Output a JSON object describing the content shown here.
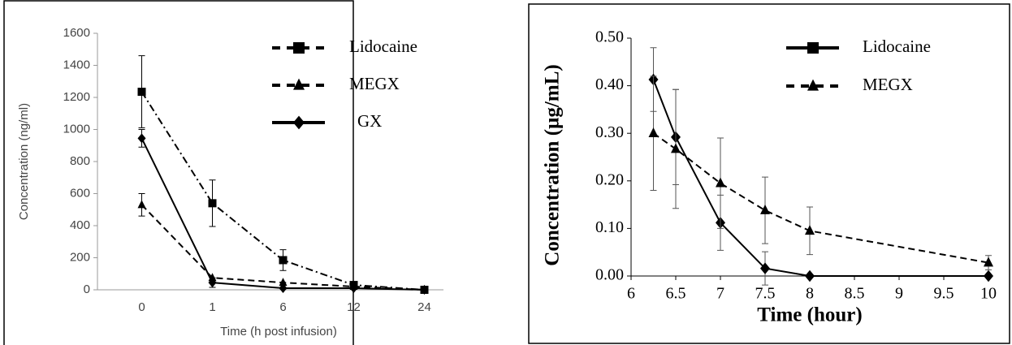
{
  "chart_data": [
    {
      "type": "line",
      "xlabel": "Time (h post infusion)",
      "ylabel": "Concentration (ng/ml)",
      "categories": [
        "0",
        "1",
        "6",
        "12",
        "24"
      ],
      "ylim": [
        0,
        1600
      ],
      "yticks": [
        0,
        200,
        400,
        600,
        800,
        1000,
        1200,
        1400,
        1600
      ],
      "series": [
        {
          "name": "Lidocaine",
          "color": "#000000",
          "line_style": "dashdot",
          "marker": "square",
          "legend_marker": "square",
          "values": [
            1235,
            540,
            185,
            30,
            0
          ],
          "errors": [
            225,
            145,
            65,
            null,
            null
          ]
        },
        {
          "name": "MEGX",
          "color": "#000000",
          "line_style": "dashed",
          "marker": "triangle",
          "legend_marker": "triangle",
          "values": [
            530,
            75,
            45,
            20,
            0
          ],
          "errors": [
            70,
            null,
            null,
            null,
            null
          ]
        },
        {
          "name": "GX",
          "color": "#000000",
          "line_style": "solid",
          "marker": "diamond",
          "legend_marker": "diamond",
          "values": [
            945,
            45,
            10,
            10,
            0
          ],
          "errors": [
            55,
            30,
            null,
            null,
            null
          ]
        }
      ]
    },
    {
      "type": "scatter-line",
      "xlabel": "Time (hour)",
      "ylabel": "Concentration (µg/mL)",
      "xlim": [
        6,
        10
      ],
      "xticks": [
        6,
        6.5,
        7,
        7.5,
        8,
        8.5,
        9,
        9.5,
        10
      ],
      "ylim": [
        0,
        0.5
      ],
      "yticks": [
        {
          "value": 0,
          "label": "0.00"
        },
        {
          "value": 0.1,
          "label": "0.10"
        },
        {
          "value": 0.2,
          "label": "0.20"
        },
        {
          "value": 0.3,
          "label": "0.30"
        },
        {
          "value": 0.4,
          "label": "0.40"
        },
        {
          "value": 0.5,
          "label": "0.50"
        }
      ],
      "series": [
        {
          "name": "Lidocaine",
          "color": "#000000",
          "line_style": "solid",
          "marker": "diamond",
          "legend_marker": "square",
          "x": [
            6.25,
            6.5,
            7,
            7.5,
            8,
            10
          ],
          "values": [
            0.413,
            0.292,
            0.112,
            0.016,
            0,
            0
          ],
          "errors": [
            0.067,
            0.1,
            0.058,
            0.035,
            null,
            null
          ]
        },
        {
          "name": "MEGX",
          "color": "#000000",
          "line_style": "dashed",
          "marker": "triangle",
          "legend_marker": "triangle",
          "x": [
            6.25,
            6.5,
            7,
            7.5,
            8,
            10
          ],
          "values": [
            0.3,
            0.267,
            0.195,
            0.138,
            0.095,
            0.028
          ],
          "errors": [
            0.12,
            0.125,
            0.095,
            0.07,
            0.05,
            0.015
          ]
        }
      ]
    }
  ]
}
